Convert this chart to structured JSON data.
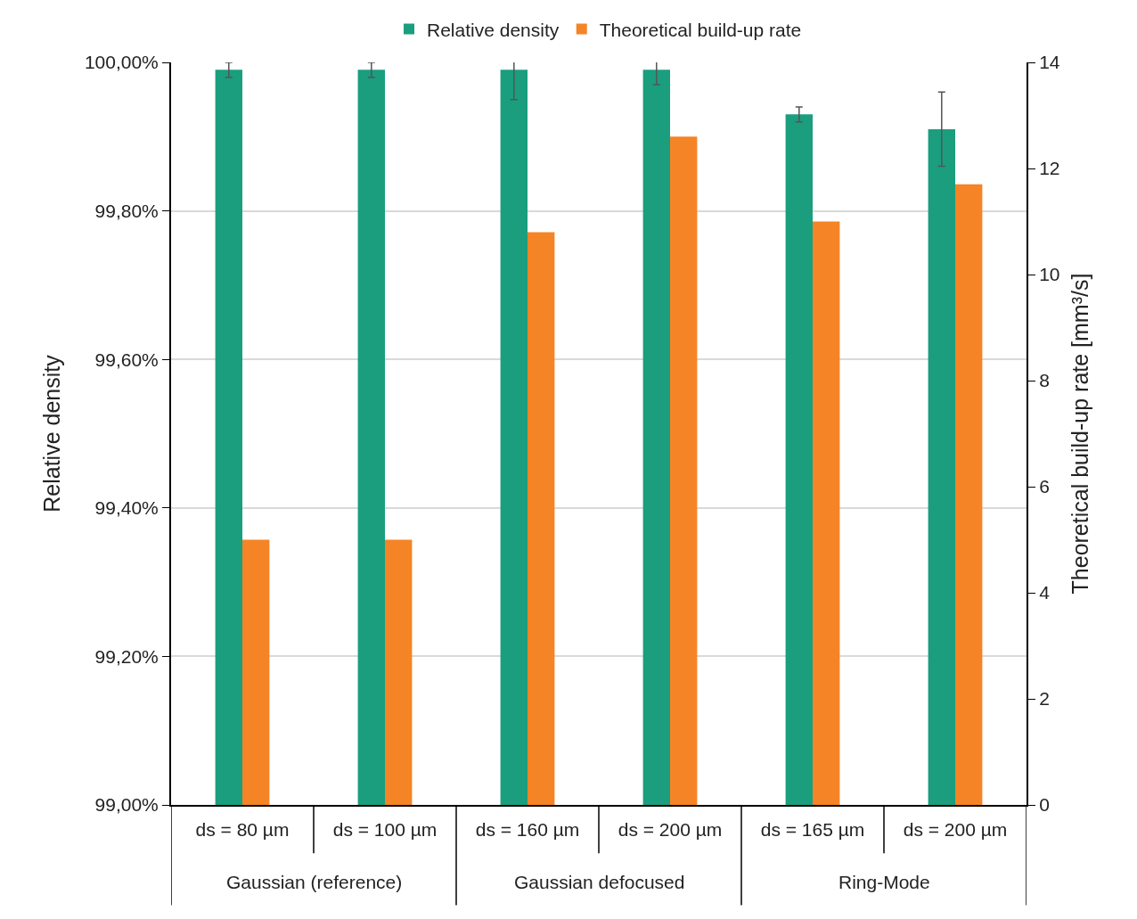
{
  "chart_data": {
    "type": "bar",
    "categories": [
      "ds = 80 µm",
      "ds = 100 µm",
      "ds = 160 µm",
      "ds = 200 µm",
      "ds = 165 µm",
      "ds = 200 µm"
    ],
    "annotations": [
      "Gaussian (reference)",
      "Gaussian defocused",
      "Ring-Mode"
    ],
    "ylabel": "Relative density",
    "y2label": "Theoretical build-up rate [mm³/s]",
    "series": [
      {
        "name": "Relative density",
        "color": "#1a9e7e",
        "values": [
          99.99,
          99.99,
          99.99,
          99.99,
          99.93,
          99.91
        ],
        "errors": [
          0.01,
          0.01,
          0.04,
          0.02,
          0.01,
          0.05
        ]
      },
      {
        "name": "Theoretical build-up rate",
        "color": "#f58426",
        "axis": "y2",
        "values": [
          5.0,
          5.0,
          10.8,
          12.6,
          11.0,
          11.7
        ]
      }
    ],
    "ylim": [
      99.0,
      100.0
    ],
    "yticks": [
      {
        "value": 99.0,
        "label": "99,00%"
      },
      {
        "value": 99.2,
        "label": "99,20%"
      },
      {
        "value": 99.4,
        "label": "99,40%"
      },
      {
        "value": 99.6,
        "label": "99,60%"
      },
      {
        "value": 99.8,
        "label": "99,80%"
      },
      {
        "value": 100.0,
        "label": "100,00%"
      }
    ],
    "y2lim": [
      0,
      14
    ],
    "y2ticks": [
      0,
      2,
      4,
      6,
      8,
      10,
      12,
      14
    ],
    "grid": "y",
    "legend": "top"
  }
}
